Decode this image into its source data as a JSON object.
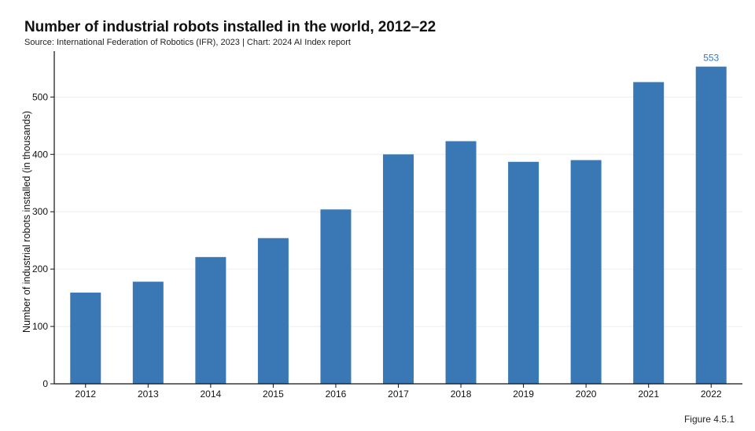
{
  "figure_label": "Figure 4.5.1",
  "chart_data": {
    "type": "bar",
    "title": "Number of industrial robots installed in the world, 2012–22",
    "subtitle": "Source: International Federation of Robotics (IFR), 2023 | Chart: 2024 AI Index report",
    "xlabel": "",
    "ylabel": "Number of industrial robots installed (in thousands)",
    "categories": [
      "2012",
      "2013",
      "2014",
      "2015",
      "2016",
      "2017",
      "2018",
      "2019",
      "2020",
      "2021",
      "2022"
    ],
    "values": [
      159,
      178,
      221,
      254,
      304,
      400,
      423,
      387,
      390,
      526,
      553
    ],
    "data_labels": [
      {
        "category": "2022",
        "text": "553"
      }
    ],
    "ylim": [
      0,
      580
    ],
    "yticks": [
      0,
      100,
      200,
      300,
      400,
      500
    ],
    "grid": true,
    "legend": "none",
    "colors": {
      "bar": "#3a78b5",
      "data_label": "#3a78b5",
      "grid": "#eeeeee",
      "axis": "#111111"
    }
  }
}
